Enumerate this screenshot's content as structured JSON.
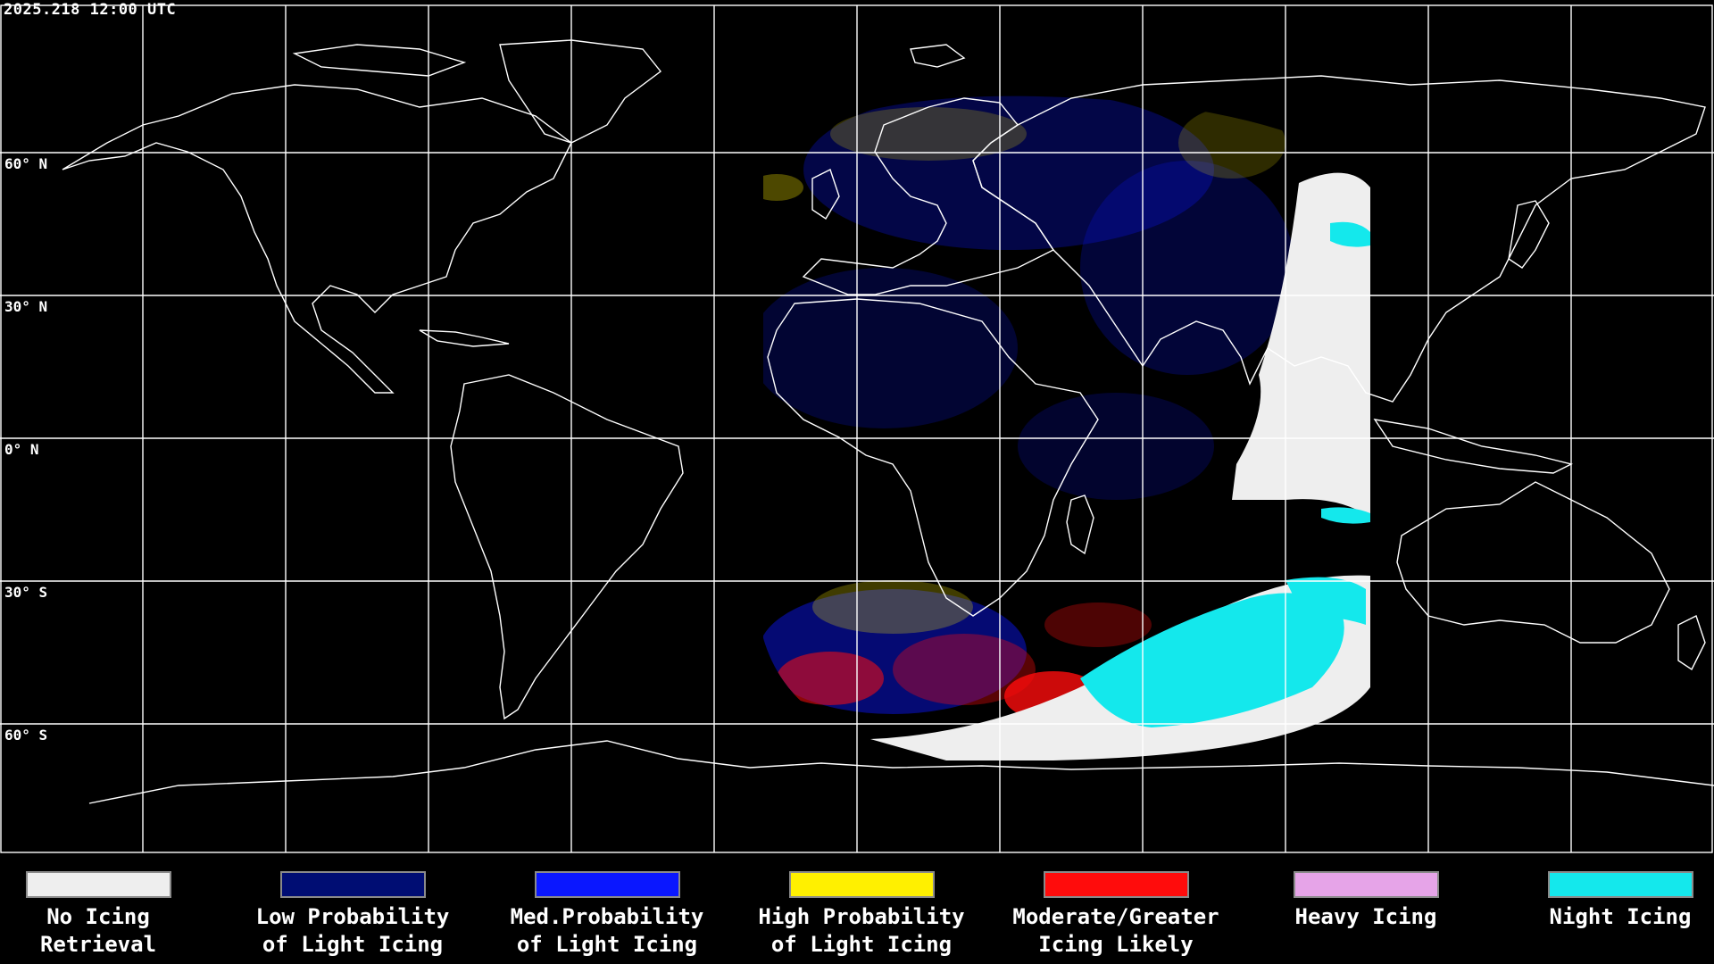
{
  "header": {
    "timestamp": "2025.218 12:00 UTC"
  },
  "map": {
    "projection": "equirectangular",
    "background_color": "#000000",
    "grid_color": "#ffffff",
    "coastline_color": "#ffffff",
    "grid_lon_step_deg": 20,
    "grid_lat_step_deg": 20,
    "lat_labels": [
      {
        "lat": 60,
        "text": "60° N"
      },
      {
        "lat": 30,
        "text": "30° N"
      },
      {
        "lat": 0,
        "text": "0° N"
      },
      {
        "lat": -30,
        "text": "30° S"
      },
      {
        "lat": -60,
        "text": "60° S"
      }
    ],
    "coverage": "satellite disk centered near 40°E"
  },
  "legend": {
    "items": [
      {
        "key": "no_icing",
        "label": "No Icing\nRetrieval",
        "color": "#eeeeee"
      },
      {
        "key": "low_prob",
        "label": "Low Probability\nof Light Icing",
        "color": "#000d73"
      },
      {
        "key": "med_prob",
        "label": "Med.Probability\nof Light Icing",
        "color": "#0a17ff"
      },
      {
        "key": "high_prob",
        "label": "High Probability\nof Light Icing",
        "color": "#fff000"
      },
      {
        "key": "moderate",
        "label": "Moderate/Greater\nIcing Likely",
        "color": "#ff0c0c"
      },
      {
        "key": "heavy",
        "label": "Heavy Icing",
        "color": "#e6a4e8"
      },
      {
        "key": "night",
        "label": "Night Icing",
        "color": "#14e8ec"
      }
    ]
  }
}
